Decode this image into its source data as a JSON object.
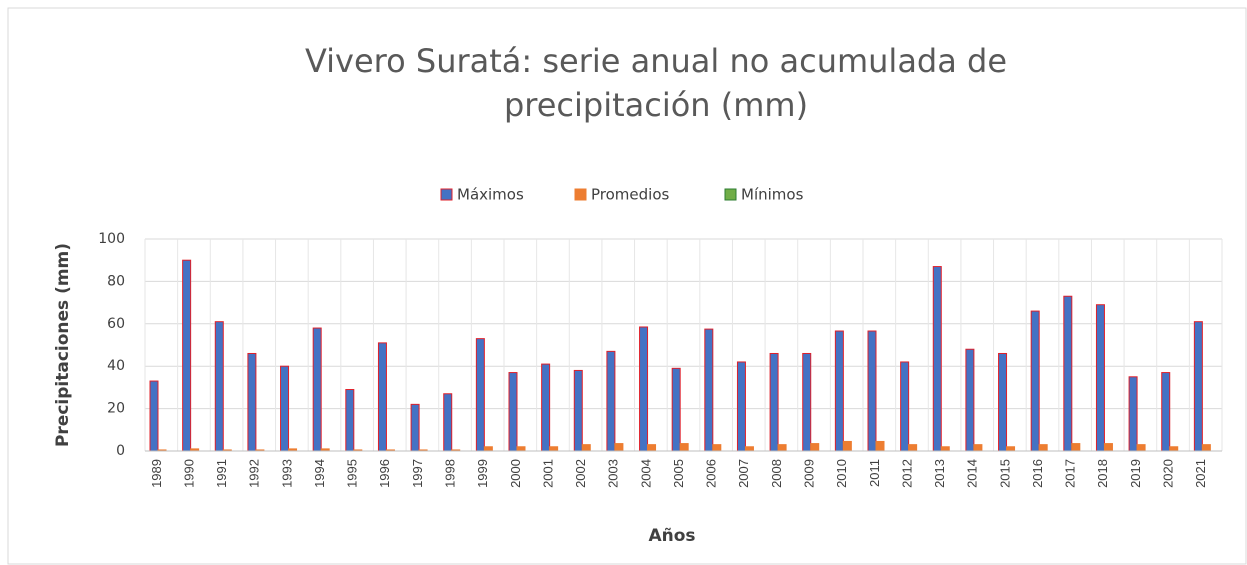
{
  "chart_data": {
    "type": "bar",
    "title": [
      "Vivero Suratá: serie anual no acumulada de",
      "precipitación (mm)"
    ],
    "y_label": "Precipitaciones (mm)",
    "x_label": "Años",
    "categories": [
      "1989",
      "1990",
      "1991",
      "1992",
      "1993",
      "1994",
      "1995",
      "1996",
      "1997",
      "1998",
      "1999",
      "2000",
      "2001",
      "2002",
      "2003",
      "2004",
      "2005",
      "2006",
      "2007",
      "2008",
      "2009",
      "2010",
      "2011",
      "2012",
      "2013",
      "2014",
      "2015",
      "2016",
      "2017",
      "2018",
      "2019",
      "2020",
      "2021"
    ],
    "series": [
      {
        "name": "Máximos",
        "color": "#4472c4",
        "edgecolor": "#e0202a",
        "values": [
          33,
          90,
          61,
          46,
          40,
          58,
          29,
          51,
          22,
          27,
          53,
          37,
          41,
          38,
          47,
          58.5,
          39,
          57.5,
          42,
          46,
          46,
          56.6,
          56.6,
          42,
          87,
          48,
          46,
          66,
          73,
          69,
          35,
          37,
          61
        ]
      },
      {
        "name": "Promedios",
        "color": "#ed7d31",
        "edgecolor": "#ed7d31",
        "values": [
          0.5,
          1,
          0.5,
          0.5,
          1,
          1,
          0.5,
          0.5,
          0.5,
          0.5,
          2,
          2,
          2,
          3,
          3.5,
          3,
          3.5,
          3,
          2,
          3,
          3.5,
          4.5,
          4.5,
          3,
          2,
          3,
          2,
          3,
          3.5,
          3.5,
          3,
          2,
          3
        ]
      },
      {
        "name": "Mínimos",
        "color": "#70ad47",
        "edgecolor": "#2e7d32",
        "values": [
          0,
          0,
          0,
          0,
          0,
          0,
          0,
          0,
          0,
          0,
          0,
          0,
          0,
          0,
          0,
          0,
          0,
          0,
          0,
          0,
          0,
          0,
          0,
          0,
          0,
          0,
          0,
          0,
          0,
          0,
          0,
          0,
          0
        ]
      }
    ],
    "ylim": [
      0,
      100
    ],
    "yticks": [
      0,
      20,
      40,
      60,
      80,
      100
    ],
    "grid": true,
    "legend": "top"
  }
}
